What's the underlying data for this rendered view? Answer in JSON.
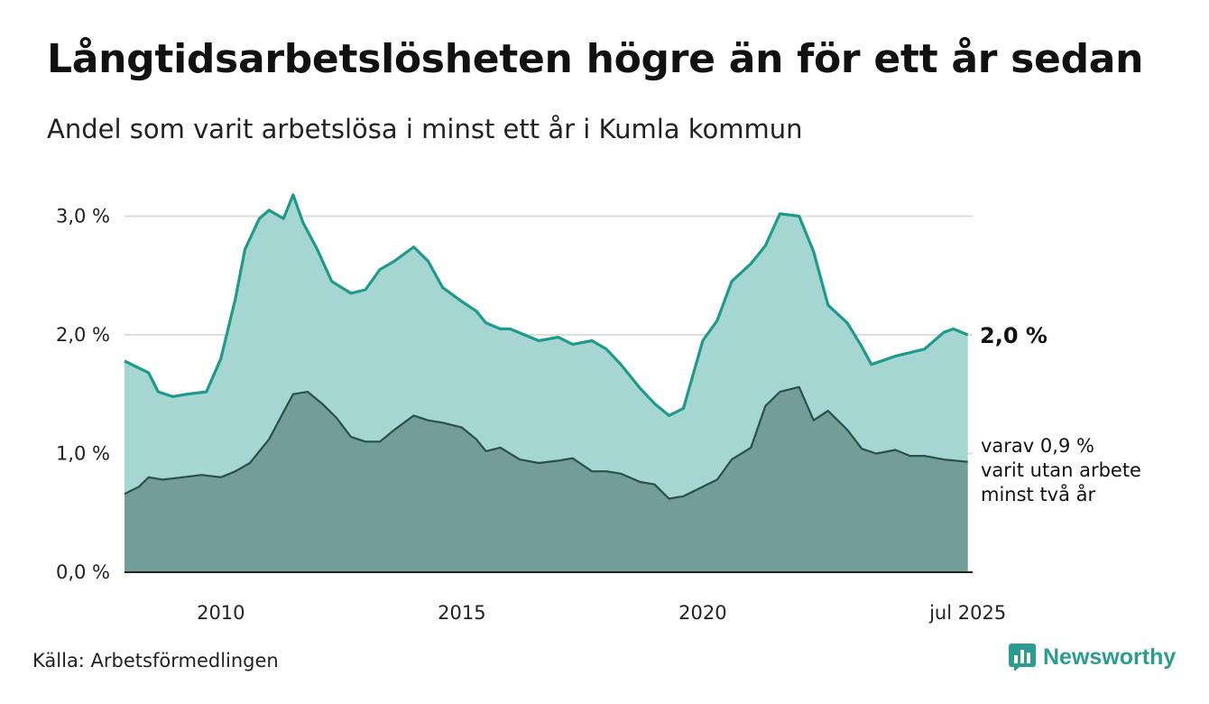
{
  "header": {
    "title": "Långtidsarbetslösheten högre än för ett år sedan",
    "subtitle": "Andel som varit arbetslösa i minst ett år i Kumla kommun"
  },
  "footer": {
    "source": "Källa: Arbetsförmedlingen",
    "brand": "Newsworthy",
    "brand_icon": "bar-chart-icon"
  },
  "colors": {
    "series1_line": "#1f9a8a",
    "series1_fill": "#a6d6d1",
    "series2_line": "#2b4f4a",
    "series2_fill": "#739e98",
    "grid": "#dddddd",
    "axis": "#222222",
    "brand": "#2a9d8f"
  },
  "chart_data": {
    "type": "area",
    "grid": true,
    "ylim": [
      0,
      3.3
    ],
    "xlim": [
      2008.0,
      2025.6
    ],
    "y_ticks": [
      0,
      1,
      2,
      3
    ],
    "y_tick_labels": [
      "0,0 %",
      "1,0 %",
      "2,0 %",
      "3,0 %"
    ],
    "x_ticks": [
      2010,
      2015,
      2020,
      2025.5
    ],
    "x_tick_labels": [
      "2010",
      "2015",
      "2020",
      "jul 2025"
    ],
    "series": [
      {
        "values": [
          [
            2008.0,
            1.78
          ],
          [
            2008.5,
            1.68
          ],
          [
            2008.7,
            1.52
          ],
          [
            2009.0,
            1.48
          ],
          [
            2009.3,
            1.5
          ],
          [
            2009.7,
            1.52
          ],
          [
            2010.0,
            1.8
          ],
          [
            2010.3,
            2.3
          ],
          [
            2010.5,
            2.72
          ],
          [
            2010.8,
            2.98
          ],
          [
            2011.0,
            3.05
          ],
          [
            2011.3,
            2.98
          ],
          [
            2011.5,
            3.18
          ],
          [
            2011.7,
            2.95
          ],
          [
            2012.0,
            2.72
          ],
          [
            2012.3,
            2.45
          ],
          [
            2012.7,
            2.35
          ],
          [
            2013.0,
            2.38
          ],
          [
            2013.3,
            2.55
          ],
          [
            2013.6,
            2.62
          ],
          [
            2014.0,
            2.74
          ],
          [
            2014.3,
            2.62
          ],
          [
            2014.6,
            2.4
          ],
          [
            2015.0,
            2.28
          ],
          [
            2015.3,
            2.2
          ],
          [
            2015.5,
            2.1
          ],
          [
            2015.8,
            2.05
          ],
          [
            2016.0,
            2.05
          ],
          [
            2016.3,
            2.0
          ],
          [
            2016.6,
            1.95
          ],
          [
            2017.0,
            1.98
          ],
          [
            2017.3,
            1.92
          ],
          [
            2017.7,
            1.95
          ],
          [
            2018.0,
            1.88
          ],
          [
            2018.3,
            1.75
          ],
          [
            2018.7,
            1.55
          ],
          [
            2019.0,
            1.42
          ],
          [
            2019.3,
            1.32
          ],
          [
            2019.6,
            1.38
          ],
          [
            2020.0,
            1.95
          ],
          [
            2020.3,
            2.12
          ],
          [
            2020.6,
            2.45
          ],
          [
            2021.0,
            2.6
          ],
          [
            2021.3,
            2.75
          ],
          [
            2021.6,
            3.02
          ],
          [
            2022.0,
            3.0
          ],
          [
            2022.3,
            2.7
          ],
          [
            2022.6,
            2.25
          ],
          [
            2023.0,
            2.1
          ],
          [
            2023.3,
            1.9
          ],
          [
            2023.5,
            1.75
          ],
          [
            2024.0,
            1.82
          ],
          [
            2024.3,
            1.85
          ],
          [
            2024.6,
            1.88
          ],
          [
            2025.0,
            2.02
          ],
          [
            2025.2,
            2.05
          ],
          [
            2025.5,
            2.0
          ]
        ],
        "end_label": "2,0 %"
      },
      {
        "values": [
          [
            2008.0,
            0.66
          ],
          [
            2008.3,
            0.72
          ],
          [
            2008.5,
            0.8
          ],
          [
            2008.8,
            0.78
          ],
          [
            2009.2,
            0.8
          ],
          [
            2009.6,
            0.82
          ],
          [
            2010.0,
            0.8
          ],
          [
            2010.3,
            0.85
          ],
          [
            2010.6,
            0.92
          ],
          [
            2011.0,
            1.12
          ],
          [
            2011.3,
            1.35
          ],
          [
            2011.5,
            1.5
          ],
          [
            2011.8,
            1.52
          ],
          [
            2012.1,
            1.42
          ],
          [
            2012.4,
            1.3
          ],
          [
            2012.7,
            1.14
          ],
          [
            2013.0,
            1.1
          ],
          [
            2013.3,
            1.1
          ],
          [
            2013.6,
            1.2
          ],
          [
            2014.0,
            1.32
          ],
          [
            2014.3,
            1.28
          ],
          [
            2014.6,
            1.26
          ],
          [
            2015.0,
            1.22
          ],
          [
            2015.3,
            1.12
          ],
          [
            2015.5,
            1.02
          ],
          [
            2015.8,
            1.05
          ],
          [
            2016.2,
            0.95
          ],
          [
            2016.6,
            0.92
          ],
          [
            2017.0,
            0.94
          ],
          [
            2017.3,
            0.96
          ],
          [
            2017.7,
            0.85
          ],
          [
            2018.0,
            0.85
          ],
          [
            2018.3,
            0.83
          ],
          [
            2018.7,
            0.76
          ],
          [
            2019.0,
            0.74
          ],
          [
            2019.3,
            0.62
          ],
          [
            2019.6,
            0.64
          ],
          [
            2020.0,
            0.72
          ],
          [
            2020.3,
            0.78
          ],
          [
            2020.6,
            0.95
          ],
          [
            2021.0,
            1.05
          ],
          [
            2021.3,
            1.4
          ],
          [
            2021.6,
            1.52
          ],
          [
            2022.0,
            1.56
          ],
          [
            2022.3,
            1.28
          ],
          [
            2022.6,
            1.36
          ],
          [
            2023.0,
            1.2
          ],
          [
            2023.3,
            1.04
          ],
          [
            2023.6,
            1.0
          ],
          [
            2024.0,
            1.03
          ],
          [
            2024.3,
            0.98
          ],
          [
            2024.6,
            0.98
          ],
          [
            2025.0,
            0.95
          ],
          [
            2025.5,
            0.93
          ]
        ],
        "end_label": "varav 0,9 %",
        "end_label_lines": [
          "varit utan arbete",
          "minst två år"
        ]
      }
    ]
  }
}
